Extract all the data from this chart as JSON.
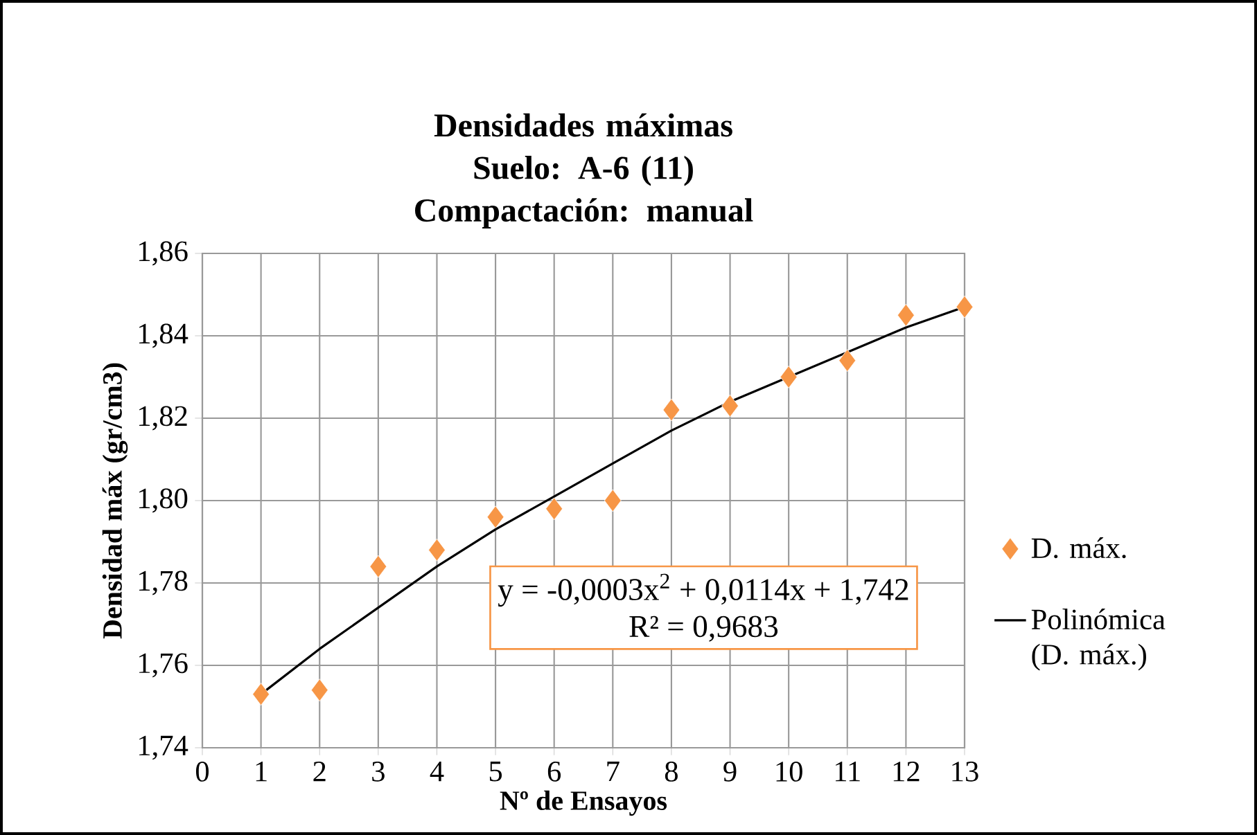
{
  "chart_data": {
    "type": "scatter",
    "title": "Densidades máximas",
    "subtitle": "Suelo: A-6 (11) Compactación: manual",
    "xlabel": "Nº de Ensayos",
    "ylabel": "Densidad máx (gr/cm3)",
    "annotations": [
      "y = -0,0003x$^{2}$ + 0,0114x + 1,742",
      "R² = 0,9683"
    ],
    "xlim": [
      0,
      13
    ],
    "xticks": [
      0,
      1,
      2,
      3,
      4,
      5,
      6,
      7,
      8,
      9,
      10,
      11,
      12,
      13
    ],
    "ylim": [
      1.74,
      1.86
    ],
    "yticks": [
      {
        "value": 1.74,
        "label": "1,74"
      },
      {
        "value": 1.76,
        "label": "1,76"
      },
      {
        "value": 1.78,
        "label": "1,78"
      },
      {
        "value": 1.8,
        "label": "1,80"
      },
      {
        "value": 1.82,
        "label": "1,82"
      },
      {
        "value": 1.84,
        "label": "1,84"
      },
      {
        "value": 1.86,
        "label": "1,86"
      }
    ],
    "grid": true,
    "legend": "right",
    "series": [
      {
        "name": "D. máx.",
        "marker": "diamond",
        "color": "#f79646",
        "x": [
          1,
          2,
          3,
          4,
          5,
          6,
          7,
          8,
          9,
          10,
          11,
          12,
          13
        ],
        "values": [
          1.753,
          1.754,
          1.784,
          1.788,
          1.796,
          1.798,
          1.8,
          1.822,
          1.823,
          1.83,
          1.834,
          1.845,
          1.847
        ]
      },
      {
        "name": "Polinómica (D. máx.)",
        "type": "line",
        "marker": "none",
        "line_style": "solid",
        "color": "#000000",
        "x": [
          1,
          2,
          3,
          4,
          5,
          6,
          7,
          8,
          9,
          10,
          11,
          12,
          13
        ],
        "values": [
          1.753,
          1.764,
          1.774,
          1.784,
          1.793,
          1.801,
          1.809,
          1.817,
          1.824,
          1.83,
          1.836,
          1.842,
          1.847
        ]
      }
    ]
  }
}
